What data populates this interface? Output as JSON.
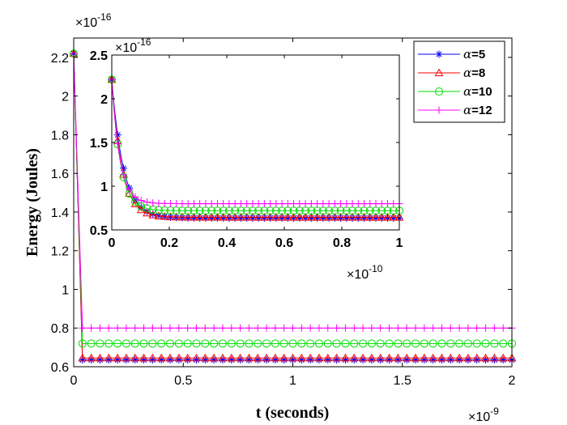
{
  "chart_data": {
    "type": "line",
    "main": {
      "xlabel": "t (seconds)",
      "ylabel": "Energy (Joules)",
      "x_multiplier": "×10",
      "x_exponent": "-9",
      "y_multiplier": "×10",
      "y_exponent": "-16",
      "xlim": [
        0,
        2
      ],
      "ylim": [
        0.6,
        2.3
      ],
      "xticks": [
        "0",
        "0.5",
        "1",
        "1.5",
        "2"
      ],
      "xtick_values": [
        0,
        0.5,
        1,
        1.5,
        2
      ],
      "yticks": [
        "0.6",
        "0.8",
        "1",
        "1.2",
        "1.4",
        "1.6",
        "1.8",
        "2",
        "2.2"
      ],
      "ytick_values": [
        0.6,
        0.8,
        1.0,
        1.2,
        1.4,
        1.6,
        1.8,
        2.0,
        2.2
      ],
      "series": [
        {
          "name": "α=5",
          "color": "#0000ff",
          "marker": "asterisk",
          "start": 2.22,
          "steady": 0.635
        },
        {
          "name": "α=8",
          "color": "#ff0000",
          "marker": "triangle",
          "start": 2.22,
          "steady": 0.645
        },
        {
          "name": "α=10",
          "color": "#00dd00",
          "marker": "circle",
          "start": 2.22,
          "steady": 0.72
        },
        {
          "name": "α=12",
          "color": "#ff00ff",
          "marker": "plus",
          "start": 2.22,
          "steady": 0.8
        }
      ],
      "t_end": 2.0,
      "transition_t": 0.04,
      "marker_count": 50
    },
    "inset": {
      "x_multiplier": "×10",
      "x_exponent": "-10",
      "y_multiplier": "×10",
      "y_exponent": "-16",
      "xlim": [
        0,
        1
      ],
      "ylim": [
        0.5,
        2.5
      ],
      "xticks": [
        "0",
        "0.2",
        "0.4",
        "0.6",
        "0.8",
        "1"
      ],
      "xtick_values": [
        0,
        0.2,
        0.4,
        0.6,
        0.8,
        1.0
      ],
      "yticks": [
        "0.5",
        "1",
        "1.5",
        "2",
        "2.5"
      ],
      "ytick_values": [
        0.5,
        1.0,
        1.5,
        2.0,
        2.5
      ],
      "series": [
        {
          "name": "α=5",
          "start": 2.22,
          "steady": 0.635,
          "tau": 0.04
        },
        {
          "name": "α=8",
          "start": 2.22,
          "steady": 0.645,
          "tau": 0.035
        },
        {
          "name": "α=10",
          "start": 2.22,
          "steady": 0.72,
          "tau": 0.03
        },
        {
          "name": "α=12",
          "start": 2.22,
          "steady": 0.8,
          "tau": 0.028
        }
      ],
      "marker_count": 49
    },
    "legend": {
      "location": "top-right",
      "entries": [
        {
          "alpha": "α",
          "text": "=5"
        },
        {
          "alpha": "α",
          "text": "=8"
        },
        {
          "alpha": "α",
          "text": "=10"
        },
        {
          "alpha": "α",
          "text": "=12"
        }
      ]
    }
  }
}
